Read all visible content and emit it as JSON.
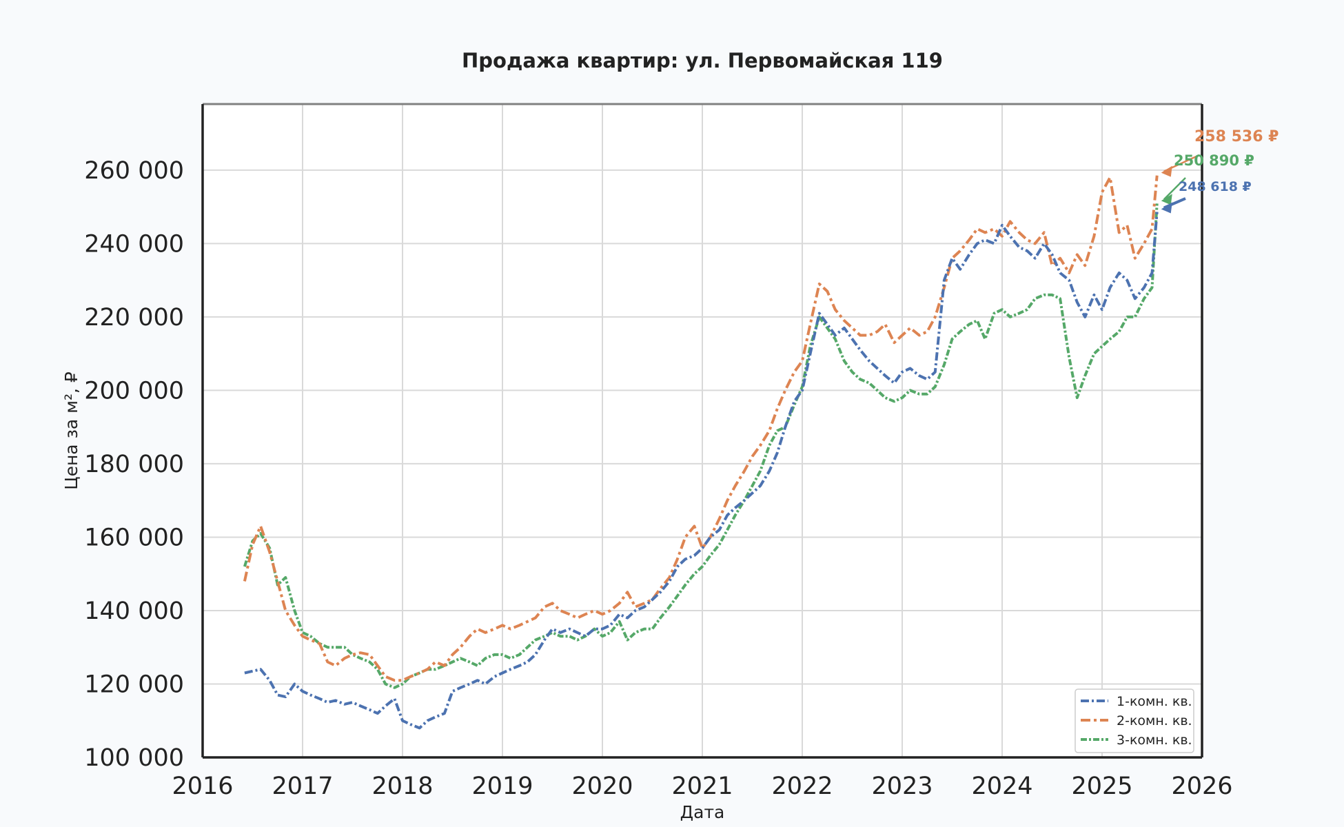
{
  "chart_data": {
    "type": "line",
    "title": "Продажа квартир: ул. Первомайская 119",
    "xlabel": "Дата",
    "ylabel": "Цена за м², ₽",
    "xlim": [
      2016,
      2026
    ],
    "ylim": [
      100000,
      278000
    ],
    "x_ticks": [
      2016,
      2017,
      2018,
      2019,
      2020,
      2021,
      2022,
      2023,
      2024,
      2025,
      2026
    ],
    "x_tick_labels": [
      "2016",
      "2017",
      "2018",
      "2019",
      "2020",
      "2021",
      "2022",
      "2023",
      "2024",
      "2025",
      "2026"
    ],
    "y_ticks": [
      100000,
      120000,
      140000,
      160000,
      180000,
      200000,
      220000,
      240000,
      260000
    ],
    "y_tick_labels": [
      "100 000",
      "120 000",
      "140 000",
      "160 000",
      "180 000",
      "200 000",
      "220 000",
      "240 000",
      "260 000"
    ],
    "grid": true,
    "legend": {
      "position": "bottom-right"
    },
    "series": [
      {
        "name": "1-комн. кв.",
        "color": "#4c72b0",
        "dash": "12,4,3,4",
        "x": [
          2016.42,
          2016.5,
          2016.58,
          2016.67,
          2016.75,
          2016.83,
          2016.92,
          2017.0,
          2017.08,
          2017.17,
          2017.25,
          2017.33,
          2017.42,
          2017.5,
          2017.58,
          2017.67,
          2017.75,
          2017.83,
          2017.92,
          2018.0,
          2018.08,
          2018.17,
          2018.25,
          2018.33,
          2018.42,
          2018.5,
          2018.58,
          2018.67,
          2018.75,
          2018.83,
          2018.92,
          2019.0,
          2019.08,
          2019.17,
          2019.25,
          2019.33,
          2019.42,
          2019.5,
          2019.58,
          2019.67,
          2019.75,
          2019.83,
          2019.92,
          2020.0,
          2020.08,
          2020.17,
          2020.25,
          2020.33,
          2020.42,
          2020.5,
          2020.58,
          2020.67,
          2020.75,
          2020.83,
          2020.92,
          2021.0,
          2021.08,
          2021.17,
          2021.25,
          2021.33,
          2021.42,
          2021.5,
          2021.58,
          2021.67,
          2021.75,
          2021.83,
          2021.92,
          2022.0,
          2022.08,
          2022.17,
          2022.25,
          2022.33,
          2022.42,
          2022.5,
          2022.58,
          2022.67,
          2022.75,
          2022.83,
          2022.92,
          2023.0,
          2023.08,
          2023.17,
          2023.25,
          2023.33,
          2023.42,
          2023.5,
          2023.58,
          2023.67,
          2023.75,
          2023.83,
          2023.92,
          2024.0,
          2024.08,
          2024.17,
          2024.25,
          2024.33,
          2024.42,
          2024.5,
          2024.58,
          2024.67,
          2024.75,
          2024.83,
          2024.92,
          2025.0,
          2025.08,
          2025.17,
          2025.25,
          2025.33,
          2025.42,
          2025.5,
          2025.55
        ],
        "y": [
          123000,
          123500,
          124000,
          121000,
          117000,
          116500,
          120000,
          118000,
          117000,
          116000,
          115000,
          115500,
          114500,
          115000,
          114000,
          113000,
          112000,
          114000,
          116000,
          110000,
          109000,
          108000,
          110000,
          111000,
          112000,
          118000,
          119000,
          120000,
          121000,
          120000,
          122000,
          123000,
          124000,
          125000,
          126000,
          128000,
          132000,
          135000,
          134000,
          135000,
          134000,
          133000,
          135000,
          135000,
          136000,
          139000,
          138000,
          140000,
          141000,
          143000,
          145000,
          148000,
          152000,
          154000,
          155000,
          157000,
          160000,
          162000,
          166000,
          168000,
          170000,
          172000,
          174000,
          178000,
          183000,
          190000,
          197000,
          200000,
          210000,
          221000,
          218000,
          215000,
          217000,
          214000,
          211000,
          208000,
          206000,
          204000,
          202000,
          205000,
          206000,
          204000,
          203000,
          205000,
          230000,
          236000,
          233000,
          237000,
          240000,
          241000,
          240000,
          245000,
          242000,
          239000,
          238000,
          236000,
          240000,
          237000,
          232000,
          230000,
          224000,
          220000,
          226000,
          222000,
          228000,
          232000,
          230000,
          225000,
          228000,
          232000,
          248618
        ]
      },
      {
        "name": "2-комн. кв.",
        "color": "#dd8452",
        "dash": "14,5,4,5",
        "x": [
          2016.42,
          2016.5,
          2016.58,
          2016.67,
          2016.75,
          2016.83,
          2016.92,
          2017.0,
          2017.08,
          2017.17,
          2017.25,
          2017.33,
          2017.42,
          2017.5,
          2017.58,
          2017.67,
          2017.75,
          2017.83,
          2017.92,
          2018.0,
          2018.08,
          2018.17,
          2018.25,
          2018.33,
          2018.42,
          2018.5,
          2018.58,
          2018.67,
          2018.75,
          2018.83,
          2018.92,
          2019.0,
          2019.08,
          2019.17,
          2019.25,
          2019.33,
          2019.42,
          2019.5,
          2019.58,
          2019.67,
          2019.75,
          2019.83,
          2019.92,
          2020.0,
          2020.08,
          2020.17,
          2020.25,
          2020.33,
          2020.42,
          2020.5,
          2020.58,
          2020.67,
          2020.75,
          2020.83,
          2020.92,
          2021.0,
          2021.08,
          2021.17,
          2021.25,
          2021.33,
          2021.42,
          2021.5,
          2021.58,
          2021.67,
          2021.75,
          2021.83,
          2021.92,
          2022.0,
          2022.08,
          2022.17,
          2022.25,
          2022.33,
          2022.42,
          2022.5,
          2022.58,
          2022.67,
          2022.75,
          2022.83,
          2022.92,
          2023.0,
          2023.08,
          2023.17,
          2023.25,
          2023.33,
          2023.42,
          2023.5,
          2023.58,
          2023.67,
          2023.75,
          2023.83,
          2023.92,
          2024.0,
          2024.08,
          2024.17,
          2024.25,
          2024.33,
          2024.42,
          2024.5,
          2024.58,
          2024.67,
          2024.75,
          2024.83,
          2024.92,
          2025.0,
          2025.08,
          2025.17,
          2025.25,
          2025.33,
          2025.42,
          2025.5,
          2025.55
        ],
        "y": [
          148000,
          158000,
          163000,
          156000,
          148000,
          140000,
          136000,
          133000,
          132000,
          131000,
          126000,
          125000,
          127000,
          128000,
          128500,
          128000,
          125000,
          122000,
          121000,
          121000,
          122000,
          123000,
          124000,
          126000,
          125000,
          128000,
          130000,
          133000,
          135000,
          134000,
          135000,
          136000,
          135000,
          136000,
          137000,
          138000,
          141000,
          142000,
          140000,
          139000,
          138000,
          139000,
          140000,
          139000,
          140000,
          142000,
          145000,
          141000,
          142000,
          143000,
          146000,
          149000,
          154000,
          160000,
          163000,
          157000,
          160000,
          165000,
          170000,
          174000,
          178000,
          182000,
          185000,
          189000,
          195000,
          200000,
          205000,
          208000,
          218000,
          229000,
          227000,
          222000,
          219000,
          217000,
          215000,
          215000,
          216000,
          218000,
          213000,
          215000,
          217000,
          215000,
          216000,
          220000,
          228000,
          236000,
          238000,
          241000,
          244000,
          243000,
          244000,
          242000,
          246000,
          243000,
          241000,
          240000,
          243000,
          234000,
          236000,
          232000,
          237000,
          234000,
          242000,
          254000,
          258000,
          243000,
          245000,
          236000,
          240000,
          244000,
          258536
        ]
      },
      {
        "name": "3-комн. кв.",
        "color": "#55a868",
        "dash": "9,3,3,3",
        "x": [
          2016.42,
          2016.5,
          2016.58,
          2016.67,
          2016.75,
          2016.83,
          2016.92,
          2017.0,
          2017.08,
          2017.17,
          2017.25,
          2017.33,
          2017.42,
          2017.5,
          2017.58,
          2017.67,
          2017.75,
          2017.83,
          2017.92,
          2018.0,
          2018.08,
          2018.17,
          2018.25,
          2018.33,
          2018.42,
          2018.5,
          2018.58,
          2018.67,
          2018.75,
          2018.83,
          2018.92,
          2019.0,
          2019.08,
          2019.17,
          2019.25,
          2019.33,
          2019.42,
          2019.5,
          2019.58,
          2019.67,
          2019.75,
          2019.83,
          2019.92,
          2020.0,
          2020.08,
          2020.17,
          2020.25,
          2020.33,
          2020.42,
          2020.5,
          2020.58,
          2020.67,
          2020.75,
          2020.83,
          2020.92,
          2021.0,
          2021.08,
          2021.17,
          2021.25,
          2021.33,
          2021.42,
          2021.5,
          2021.58,
          2021.67,
          2021.75,
          2021.83,
          2021.92,
          2022.0,
          2022.08,
          2022.17,
          2022.25,
          2022.33,
          2022.42,
          2022.5,
          2022.58,
          2022.67,
          2022.75,
          2022.83,
          2022.92,
          2023.0,
          2023.08,
          2023.17,
          2023.25,
          2023.33,
          2023.42,
          2023.5,
          2023.58,
          2023.67,
          2023.75,
          2023.83,
          2023.92,
          2024.0,
          2024.08,
          2024.17,
          2024.25,
          2024.33,
          2024.42,
          2024.5,
          2024.58,
          2024.67,
          2024.75,
          2024.83,
          2024.92,
          2025.0,
          2025.08,
          2025.17,
          2025.25,
          2025.33,
          2025.42,
          2025.5,
          2025.55
        ],
        "y": [
          152000,
          159000,
          161000,
          157000,
          147000,
          149000,
          140000,
          134000,
          133000,
          131000,
          130000,
          130000,
          130000,
          128000,
          127000,
          126000,
          124000,
          120000,
          119000,
          120000,
          122000,
          123000,
          124000,
          124000,
          125000,
          126000,
          127000,
          126000,
          125000,
          127000,
          128000,
          128000,
          127000,
          128000,
          130000,
          132000,
          133000,
          134000,
          133000,
          133000,
          132000,
          133000,
          135000,
          133000,
          134000,
          137000,
          132000,
          134000,
          135000,
          135000,
          138000,
          141000,
          144000,
          147000,
          150000,
          152000,
          155000,
          158000,
          162000,
          166000,
          170000,
          174000,
          178000,
          185000,
          189000,
          190000,
          196000,
          201000,
          212000,
          220000,
          217000,
          214000,
          208000,
          205000,
          203000,
          202000,
          200000,
          198000,
          197000,
          198000,
          200000,
          199000,
          199000,
          201000,
          207000,
          214000,
          216000,
          218000,
          219000,
          214000,
          221000,
          222000,
          220000,
          221000,
          222000,
          225000,
          226000,
          226000,
          225000,
          209000,
          198000,
          204000,
          210000,
          212000,
          214000,
          216000,
          220000,
          220000,
          225000,
          228000,
          250890
        ]
      }
    ],
    "annotations": [
      {
        "text": "258 536 ₽",
        "series": "2-комн. кв.",
        "color": "#dd8452"
      },
      {
        "text": "250 890 ₽",
        "series": "3-комн. кв.",
        "color": "#55a868"
      },
      {
        "text": "248 618 ₽",
        "series": "1-комн. кв.",
        "color": "#4c72b0"
      }
    ]
  }
}
